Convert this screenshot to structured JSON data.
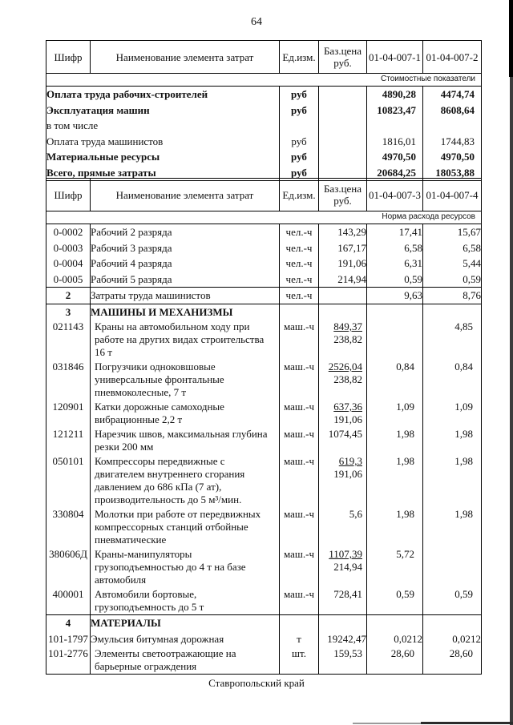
{
  "page": {
    "number": "64",
    "footer": "Ставропольский край"
  },
  "table1": {
    "headers": [
      "Шифр",
      "Наименование элемента затрат",
      "Ед.изм.",
      "Баз.цена\nруб.",
      "01-04-007-1",
      "01-04-007-2"
    ],
    "band_label": "Стоимостные показатели",
    "rows": [
      {
        "name": "Оплата труда рабочих-строителей",
        "unit": "руб",
        "base": "",
        "v1": "4890,28",
        "v2": "4474,74",
        "bold": true
      },
      {
        "name": "Эксплуатация машин",
        "unit": "руб",
        "base": "",
        "v1": "10823,47",
        "v2": "8608,64",
        "bold": true
      },
      {
        "name": "в том числе",
        "unit": "",
        "base": "",
        "v1": "",
        "v2": "",
        "bold": false
      },
      {
        "name": "Оплата труда машинистов",
        "unit": "руб",
        "base": "",
        "v1": "1816,01",
        "v2": "1744,83",
        "bold": false
      },
      {
        "name": "Материальные ресурсы",
        "unit": "руб",
        "base": "",
        "v1": "4970,50",
        "v2": "4970,50",
        "bold": true
      },
      {
        "name": "Всего, прямые затраты",
        "unit": "руб",
        "base": "",
        "v1": "20684,25",
        "v2": "18053,88",
        "bold": true
      }
    ]
  },
  "table2": {
    "headers": [
      "Шифр",
      "Наименование элемента затрат",
      "Ед.изм.",
      "Баз.цена\nруб.",
      "01-04-007-3",
      "01-04-007-4"
    ],
    "band_label": "Норма расхода ресурсов",
    "rows": [
      {
        "code": "0-0002",
        "name": "Рабочий 2 разряда",
        "unit": "чел.-ч",
        "base": "143,29",
        "v1": "17,41",
        "v2": "15,67"
      },
      {
        "code": "0-0003",
        "name": "Рабочий 3 разряда",
        "unit": "чел.-ч",
        "base": "167,17",
        "v1": "6,58",
        "v2": "6,58"
      },
      {
        "code": "0-0004",
        "name": "Рабочий 4 разряда",
        "unit": "чел.-ч",
        "base": "191,06",
        "v1": "6,31",
        "v2": "5,44"
      },
      {
        "code": "0-0005",
        "name": "Рабочий 5 разряда",
        "unit": "чел.-ч",
        "base": "214,94",
        "v1": "0,59",
        "v2": "0,59"
      },
      {
        "code": "2",
        "code_bold": true,
        "separator": true,
        "name": "Затраты труда машинистов",
        "unit": "чел.-ч",
        "base": "",
        "v1": "9,63",
        "v2": "8,76"
      },
      {
        "code": "3",
        "code_bold": true,
        "separator": true,
        "name": "МАШИНЫ И МЕХАНИЗМЫ",
        "name_bold": true,
        "unit": "",
        "base": "",
        "v1": "",
        "v2": ""
      },
      {
        "code": "021143",
        "name": "Краны на автомобильном ходу при\nработе на других видах строительства\n16 т",
        "unit": "маш.-ч",
        "base_fraction": {
          "numerator": "849,37",
          "denominator": "238,82"
        },
        "v1": "",
        "v2": "4,85"
      },
      {
        "code": "031846",
        "name": "Погрузчики одноковшовые\nуниверсальные фронтальные\nпневмоколесные, 7 т",
        "unit": "маш.-ч",
        "base_fraction": {
          "numerator": "2526,04",
          "denominator": "238,82"
        },
        "v1": "0,84",
        "v2": "0,84"
      },
      {
        "code": "120901",
        "name": "Катки дорожные самоходные\nвибрационные 2,2 т",
        "unit": "маш.-ч",
        "base_fraction": {
          "numerator": "637,36",
          "denominator": "191,06"
        },
        "v1": "1,09",
        "v2": "1,09"
      },
      {
        "code": "121211",
        "name": "Нарезчик швов, максимальная глубина\nрезки 200 мм",
        "unit": "маш.-ч",
        "base": "1074,45",
        "v1": "1,98",
        "v2": "1,98"
      },
      {
        "code": "050101",
        "name": "Компрессоры передвижные с\nдвигателем внутреннего сгорания\nдавлением до 686 кПа (7 ат),\nпроизводительность до 5 м³/мин.",
        "unit": "маш.-ч",
        "base_fraction": {
          "numerator": "619,3",
          "denominator": "191,06"
        },
        "v1": "1,98",
        "v2": "1,98"
      },
      {
        "code": "330804",
        "name": "Молотки при работе от передвижных\nкомпрессорных станций отбойные\nпневматические",
        "unit": "маш.-ч",
        "base": "5,6",
        "v1": "1,98",
        "v2": "1,98"
      },
      {
        "code": "380606Д",
        "name": "Краны-манипуляторы\nгрузоподъемностью до 4 т на базе\nавтомобиля",
        "unit": "маш.-ч",
        "base_fraction": {
          "numerator": "1107,39",
          "denominator": "214,94"
        },
        "v1": "5,72",
        "v2": ""
      },
      {
        "code": "400001",
        "name": "Автомобили бортовые,\nгрузоподъемность до 5 т",
        "unit": "маш.-ч",
        "base": "728,41",
        "v1": "0,59",
        "v2": "0,59"
      },
      {
        "code": "4",
        "code_bold": true,
        "separator": true,
        "name": "МАТЕРИАЛЫ",
        "name_bold": true,
        "unit": "",
        "base": "",
        "v1": "",
        "v2": ""
      },
      {
        "code": "101-1797",
        "name": "Эмульсия битумная дорожная",
        "unit": "т",
        "base": "19242,47",
        "v1": "0,0212",
        "v2": "0,0212"
      },
      {
        "code": "101-2776",
        "name": "Элементы светоотражающие на\nбарьерные ограждения",
        "unit": "шт.",
        "base": "159,53",
        "v1": "28,60",
        "v2": "28,60"
      }
    ]
  }
}
